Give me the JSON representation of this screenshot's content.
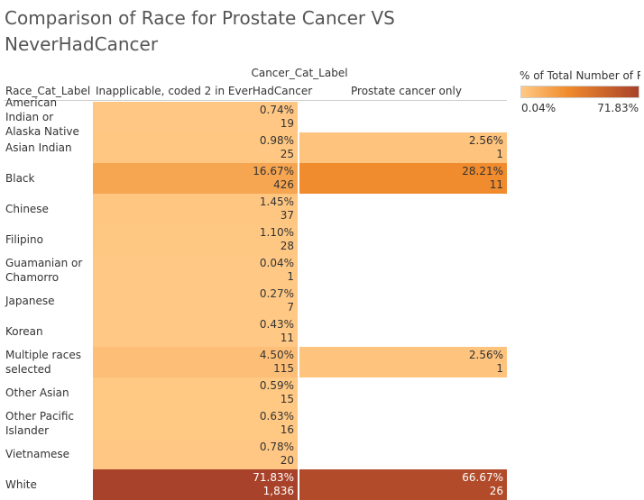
{
  "chart_data": {
    "type": "heatmap",
    "title": "Comparison of Race for Prostate Cancer VS NeverHadCancer",
    "column_dimension": "Cancer_Cat_Label",
    "row_dimension": "Race_Cat_Label",
    "columns": [
      "Inapplicable, coded 2 in EverHadCancer",
      "Prostate cancer only"
    ],
    "rows": [
      {
        "label": "American Indian or Alaska Native",
        "cells": [
          {
            "pct": 0.74,
            "pct_label": "0.74%",
            "count": "19"
          },
          null
        ]
      },
      {
        "label": "Asian Indian",
        "cells": [
          {
            "pct": 0.98,
            "pct_label": "0.98%",
            "count": "25"
          },
          {
            "pct": 2.56,
            "pct_label": "2.56%",
            "count": "1"
          }
        ]
      },
      {
        "label": "Black",
        "cells": [
          {
            "pct": 16.67,
            "pct_label": "16.67%",
            "count": "426"
          },
          {
            "pct": 28.21,
            "pct_label": "28.21%",
            "count": "11"
          }
        ]
      },
      {
        "label": "Chinese",
        "cells": [
          {
            "pct": 1.45,
            "pct_label": "1.45%",
            "count": "37"
          },
          null
        ]
      },
      {
        "label": "Filipino",
        "cells": [
          {
            "pct": 1.1,
            "pct_label": "1.10%",
            "count": "28"
          },
          null
        ]
      },
      {
        "label": "Guamanian or Chamorro",
        "cells": [
          {
            "pct": 0.04,
            "pct_label": "0.04%",
            "count": "1"
          },
          null
        ]
      },
      {
        "label": "Japanese",
        "cells": [
          {
            "pct": 0.27,
            "pct_label": "0.27%",
            "count": "7"
          },
          null
        ]
      },
      {
        "label": "Korean",
        "cells": [
          {
            "pct": 0.43,
            "pct_label": "0.43%",
            "count": "11"
          },
          null
        ]
      },
      {
        "label": "Multiple races selected",
        "cells": [
          {
            "pct": 4.5,
            "pct_label": "4.50%",
            "count": "115"
          },
          {
            "pct": 2.56,
            "pct_label": "2.56%",
            "count": "1"
          }
        ]
      },
      {
        "label": "Other Asian",
        "cells": [
          {
            "pct": 0.59,
            "pct_label": "0.59%",
            "count": "15"
          },
          null
        ]
      },
      {
        "label": "Other Pacific Islander",
        "cells": [
          {
            "pct": 0.63,
            "pct_label": "0.63%",
            "count": "16"
          },
          null
        ]
      },
      {
        "label": "Vietnamese",
        "cells": [
          {
            "pct": 0.78,
            "pct_label": "0.78%",
            "count": "20"
          },
          null
        ]
      },
      {
        "label": "White",
        "cells": [
          {
            "pct": 71.83,
            "pct_label": "71.83%",
            "count": "1,836"
          },
          {
            "pct": 66.67,
            "pct_label": "66.67%",
            "count": "26"
          }
        ]
      }
    ],
    "legend": {
      "title": "% of Total Number of R..",
      "min": 0.04,
      "max": 71.83,
      "min_label": "0.04%",
      "max_label": "71.83%",
      "color_low": "#ffc985",
      "color_mid": "#f08a2c",
      "color_high": "#a8422a"
    }
  }
}
